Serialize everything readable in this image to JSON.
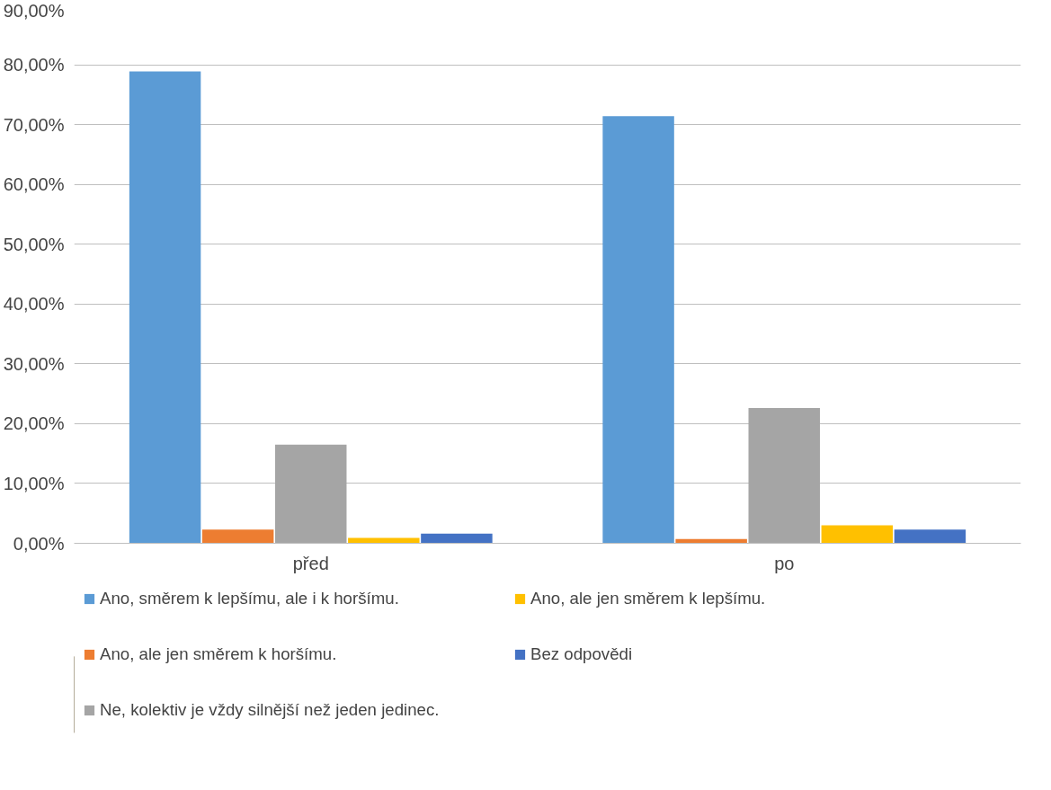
{
  "chart_data": {
    "type": "bar",
    "categories": [
      "před",
      "po"
    ],
    "series": [
      {
        "name": "Ano, směrem k lepšímu, ale i k horšímu.",
        "color": "#5b9bd5",
        "values": [
          78.9,
          71.4
        ]
      },
      {
        "name": "Ano, ale jen směrem k horšímu.",
        "color": "#ed7d31",
        "values": [
          2.3,
          0.7
        ]
      },
      {
        "name": "Ne, kolektiv je vždy silnější než jeden jedinec.",
        "color": "#a5a5a5",
        "values": [
          16.5,
          22.6
        ]
      },
      {
        "name": "Ano, ale jen směrem k lepšímu.",
        "color": "#ffc000",
        "values": [
          0.9,
          3.0
        ]
      },
      {
        "name": "Bez odpovědi",
        "color": "#4472c4",
        "values": [
          1.6,
          2.3
        ]
      }
    ],
    "ylim": [
      0,
      90
    ],
    "yticks": [
      {
        "value": 0,
        "label": "0,00%"
      },
      {
        "value": 10,
        "label": "10,00%"
      },
      {
        "value": 20,
        "label": "20,00%"
      },
      {
        "value": 30,
        "label": "30,00%"
      },
      {
        "value": 40,
        "label": "40,00%"
      },
      {
        "value": 50,
        "label": "50,00%"
      },
      {
        "value": 60,
        "label": "60,00%"
      },
      {
        "value": 70,
        "label": "70,00%"
      },
      {
        "value": 80,
        "label": "80,00%"
      },
      {
        "value": 90,
        "label": "90,00%"
      }
    ],
    "grid": "y",
    "legend": "bottom"
  }
}
